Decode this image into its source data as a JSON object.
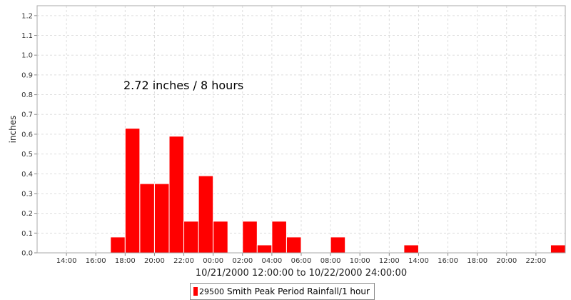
{
  "chart_data": {
    "type": "bar",
    "annotation": "2.72 inches / 8 hours",
    "xlabel": "10/21/2000 12:00:00 to 10/22/2000 24:00:00",
    "ylabel": "inches",
    "ylim": [
      0,
      1.25
    ],
    "yticks": [
      "0.0",
      "0.1",
      "0.2",
      "0.3",
      "0.4",
      "0.5",
      "0.6",
      "0.7",
      "0.8",
      "0.9",
      "1.0",
      "1.1",
      "1.2"
    ],
    "xticks": [
      "14:00",
      "16:00",
      "18:00",
      "20:00",
      "22:00",
      "00:00",
      "02:00",
      "04:00",
      "06:00",
      "08:00",
      "10:00",
      "12:00",
      "14:00",
      "16:00",
      "18:00",
      "20:00",
      "22:00"
    ],
    "grid": true,
    "bar_color": "#ff0000",
    "legend": {
      "code": "29500",
      "label": "Smith Peak Period Rainfall/1 hour"
    },
    "series": [
      {
        "name": "Smith Peak Period Rainfall/1 hour",
        "points": [
          {
            "time": "10/21/2000 17:00",
            "value": 0.08
          },
          {
            "time": "10/21/2000 18:00",
            "value": 0.63
          },
          {
            "time": "10/21/2000 19:00",
            "value": 0.35
          },
          {
            "time": "10/21/2000 20:00",
            "value": 0.35
          },
          {
            "time": "10/21/2000 21:00",
            "value": 0.59
          },
          {
            "time": "10/21/2000 22:00",
            "value": 0.16
          },
          {
            "time": "10/21/2000 23:00",
            "value": 0.39
          },
          {
            "time": "10/22/2000 00:00",
            "value": 0.16
          },
          {
            "time": "10/22/2000 02:00",
            "value": 0.16
          },
          {
            "time": "10/22/2000 03:00",
            "value": 0.04
          },
          {
            "time": "10/22/2000 04:00",
            "value": 0.16
          },
          {
            "time": "10/22/2000 05:00",
            "value": 0.08
          },
          {
            "time": "10/22/2000 08:00",
            "value": 0.08
          },
          {
            "time": "10/22/2000 13:00",
            "value": 0.04
          },
          {
            "time": "10/22/2000 23:00",
            "value": 0.04
          }
        ]
      }
    ]
  }
}
